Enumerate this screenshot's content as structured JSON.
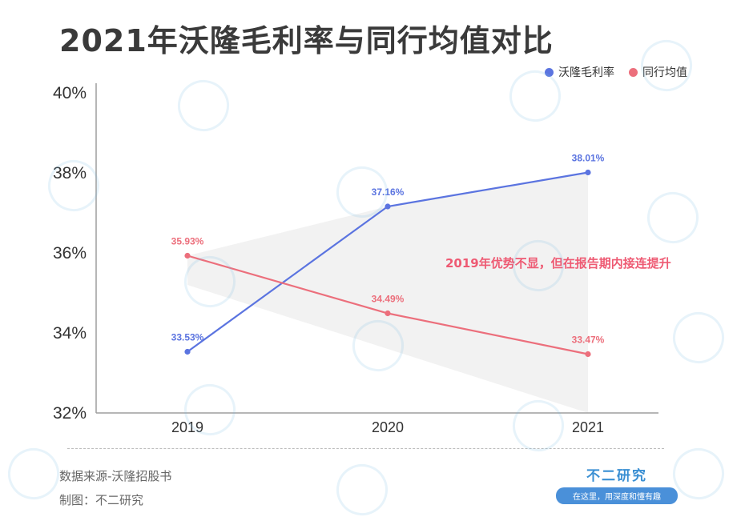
{
  "title": "2021年沃隆毛利率与同行均值对比",
  "legend": [
    {
      "label": "沃隆毛利率",
      "color": "#5b74e0"
    },
    {
      "label": "同行均值",
      "color": "#ec6f7c"
    }
  ],
  "annotation": "2019年优势不显，但在报告期内接连提升",
  "source": {
    "data_source": "数据来源-沃隆招股书",
    "made_by": "制图：不二研究"
  },
  "brand": {
    "name": "不二研究",
    "slogan": "在这里，用深度和懂有趣"
  },
  "watermark_text": "不二研究",
  "chart_data": {
    "type": "line",
    "title": "2021年沃隆毛利率与同行均值对比",
    "categories": [
      "2019",
      "2020",
      "2021"
    ],
    "series": [
      {
        "name": "沃隆毛利率",
        "values": [
          33.53,
          37.16,
          38.01
        ],
        "labels": [
          "33.53%",
          "37.16%",
          "38.01%"
        ],
        "color": "#5b74e0"
      },
      {
        "name": "同行均值",
        "values": [
          35.93,
          34.49,
          33.47
        ],
        "labels": [
          "35.93%",
          "34.49%",
          "33.47%"
        ],
        "color": "#ec6f7c"
      }
    ],
    "yticks": [
      "32%",
      "34%",
      "36%",
      "38%",
      "40%"
    ],
    "ylim": [
      32,
      40
    ],
    "shaded_area_color": "#f2f2f2",
    "grid": false
  }
}
